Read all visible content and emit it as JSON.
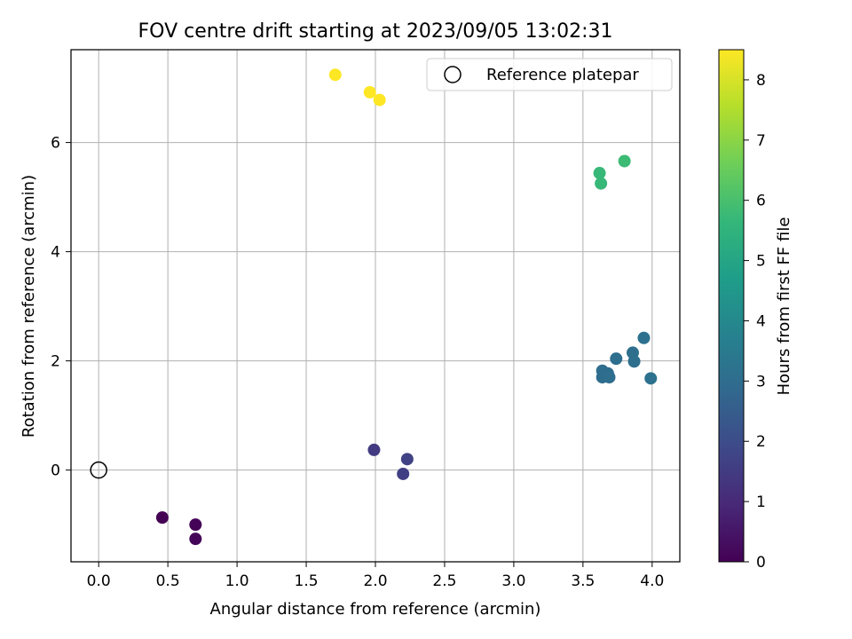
{
  "chart_data": {
    "type": "scatter",
    "title": "FOV centre drift starting at 2023/09/05 13:02:31",
    "xlabel": "Angular distance from reference (arcmin)",
    "ylabel": "Rotation from reference (arcmin)",
    "xlim": [
      -0.2,
      4.2
    ],
    "ylim": [
      -1.68,
      7.7
    ],
    "xticks": [
      0.0,
      0.5,
      1.0,
      1.5,
      2.0,
      2.5,
      3.0,
      3.5,
      4.0
    ],
    "xtick_labels": [
      "0.0",
      "0.5",
      "1.0",
      "1.5",
      "2.0",
      "2.5",
      "3.0",
      "3.5",
      "4.0"
    ],
    "yticks": [
      0,
      2,
      4,
      6
    ],
    "ytick_labels": [
      "0",
      "2",
      "4",
      "6"
    ],
    "grid": true,
    "legend": {
      "position": "top-right",
      "entries": [
        {
          "label": "Reference platepar",
          "marker": "open-circle"
        }
      ]
    },
    "reference_point": {
      "x": 0.0,
      "y": 0.0
    },
    "colorbar": {
      "label": "Hours from first FF file",
      "colormap": "viridis",
      "range": [
        0,
        8.5
      ],
      "ticks": [
        0,
        1,
        2,
        3,
        4,
        5,
        6,
        7,
        8
      ],
      "tick_labels": [
        "0",
        "1",
        "2",
        "3",
        "4",
        "5",
        "6",
        "7",
        "8"
      ]
    },
    "points": [
      {
        "x": 0.46,
        "y": -0.87,
        "hours": 0.0
      },
      {
        "x": 0.7,
        "y": -1.0,
        "hours": 0.05
      },
      {
        "x": 0.7,
        "y": -1.26,
        "hours": 0.1
      },
      {
        "x": 1.99,
        "y": 0.37,
        "hours": 1.5
      },
      {
        "x": 2.2,
        "y": -0.07,
        "hours": 1.6
      },
      {
        "x": 2.23,
        "y": 0.2,
        "hours": 1.65
      },
      {
        "x": 3.64,
        "y": 1.82,
        "hours": 3.0
      },
      {
        "x": 3.64,
        "y": 1.7,
        "hours": 3.0
      },
      {
        "x": 3.68,
        "y": 1.77,
        "hours": 3.0
      },
      {
        "x": 3.69,
        "y": 1.7,
        "hours": 3.05
      },
      {
        "x": 3.74,
        "y": 2.04,
        "hours": 3.05
      },
      {
        "x": 3.86,
        "y": 2.15,
        "hours": 3.1
      },
      {
        "x": 3.87,
        "y": 1.99,
        "hours": 3.1
      },
      {
        "x": 3.94,
        "y": 2.42,
        "hours": 3.15
      },
      {
        "x": 3.99,
        "y": 1.68,
        "hours": 3.15
      },
      {
        "x": 3.62,
        "y": 5.44,
        "hours": 5.7
      },
      {
        "x": 3.63,
        "y": 5.25,
        "hours": 5.7
      },
      {
        "x": 3.8,
        "y": 5.66,
        "hours": 5.8
      },
      {
        "x": 1.71,
        "y": 7.24,
        "hours": 8.5
      },
      {
        "x": 1.96,
        "y": 6.92,
        "hours": 8.5
      },
      {
        "x": 2.03,
        "y": 6.78,
        "hours": 8.5
      }
    ]
  }
}
